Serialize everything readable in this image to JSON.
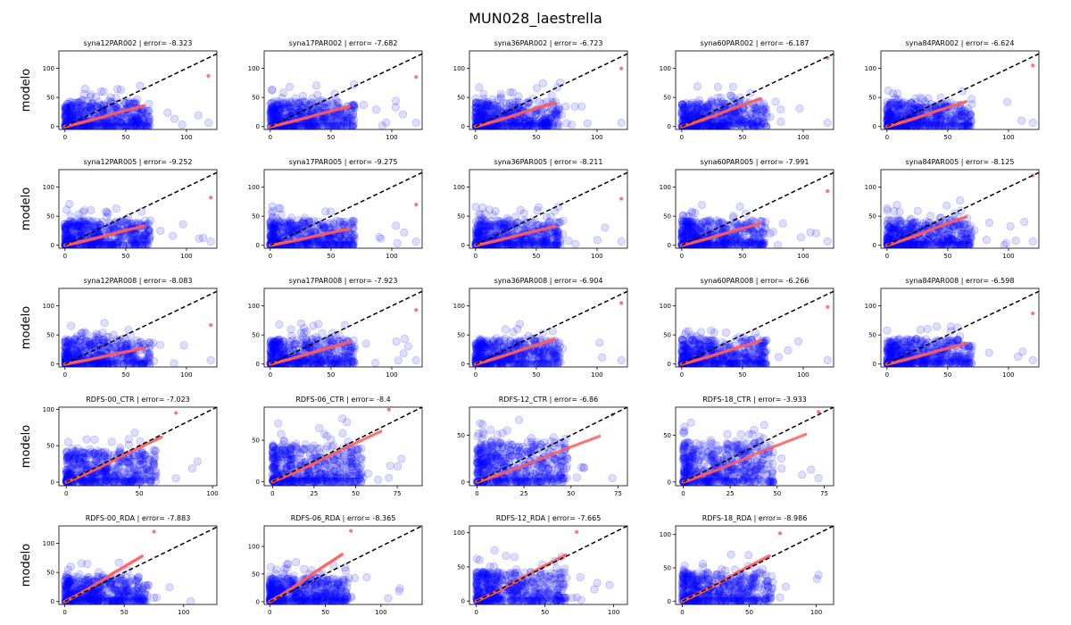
{
  "suptitle": "MUN028_laestrella",
  "ylabel": "modelo",
  "style": {
    "observed_color": "#0000ff",
    "fit_color": "#ff5a5a",
    "reference_line_color": "#000000",
    "reference_line_style": "dashed",
    "grid": false
  },
  "chart_data": [
    {
      "type": "scatter",
      "title": "syna12PAR002 | error= -8.323",
      "xlim": [
        -5,
        125
      ],
      "ylim": [
        -5,
        130
      ],
      "xticks": [
        0,
        50,
        100
      ],
      "yticks": [
        0,
        50,
        100
      ],
      "fit_end": [
        118,
        87
      ]
    },
    {
      "type": "scatter",
      "title": "syna17PAR002 | error= -7.682",
      "xlim": [
        -5,
        125
      ],
      "ylim": [
        -5,
        130
      ],
      "xticks": [
        0,
        50,
        100
      ],
      "yticks": [
        0,
        50,
        100
      ],
      "fit_end": [
        120,
        85
      ]
    },
    {
      "type": "scatter",
      "title": "syna36PAR002 | error= -6.723",
      "xlim": [
        -5,
        125
      ],
      "ylim": [
        -5,
        130
      ],
      "xticks": [
        0,
        50,
        100
      ],
      "yticks": [
        0,
        50,
        100
      ],
      "fit_end": [
        120,
        100
      ]
    },
    {
      "type": "scatter",
      "title": "syna60PAR002 | error= -6.187",
      "xlim": [
        -5,
        125
      ],
      "ylim": [
        -5,
        130
      ],
      "xticks": [
        0,
        50,
        100
      ],
      "yticks": [
        0,
        50,
        100
      ],
      "fit_end": [
        120,
        118
      ]
    },
    {
      "type": "scatter",
      "title": "syna84PAR002 | error= -6.624",
      "xlim": [
        -5,
        125
      ],
      "ylim": [
        -5,
        130
      ],
      "xticks": [
        0,
        50,
        100
      ],
      "yticks": [
        0,
        50,
        100
      ],
      "fit_end": [
        120,
        105
      ]
    },
    {
      "type": "scatter",
      "title": "syna12PAR005 | error= -9.252",
      "xlim": [
        -5,
        125
      ],
      "ylim": [
        -5,
        130
      ],
      "xticks": [
        0,
        50,
        100
      ],
      "yticks": [
        0,
        50,
        100
      ],
      "fit_end": [
        120,
        82
      ]
    },
    {
      "type": "scatter",
      "title": "syna17PAR005 | error= -9.275",
      "xlim": [
        -5,
        125
      ],
      "ylim": [
        -5,
        130
      ],
      "xticks": [
        0,
        50,
        100
      ],
      "yticks": [
        0,
        50,
        100
      ],
      "fit_end": [
        120,
        70
      ]
    },
    {
      "type": "scatter",
      "title": "syna36PAR005 | error= -8.211",
      "xlim": [
        -5,
        125
      ],
      "ylim": [
        -5,
        130
      ],
      "xticks": [
        0,
        50,
        100
      ],
      "yticks": [
        0,
        50,
        100
      ],
      "fit_end": [
        120,
        80
      ]
    },
    {
      "type": "scatter",
      "title": "syna60PAR005 | error= -7.991",
      "xlim": [
        -5,
        125
      ],
      "ylim": [
        -5,
        130
      ],
      "xticks": [
        0,
        50,
        100
      ],
      "yticks": [
        0,
        50,
        100
      ],
      "fit_end": [
        120,
        93
      ]
    },
    {
      "type": "scatter",
      "title": "syna84PAR005 | error= -8.125",
      "xlim": [
        -5,
        125
      ],
      "ylim": [
        -5,
        130
      ],
      "xticks": [
        0,
        50,
        100
      ],
      "yticks": [
        0,
        50,
        100
      ],
      "fit_end": [
        120,
        120
      ]
    },
    {
      "type": "scatter",
      "title": "syna12PAR008 | error= -8.083",
      "xlim": [
        -5,
        125
      ],
      "ylim": [
        -5,
        130
      ],
      "xticks": [
        0,
        50,
        100
      ],
      "yticks": [
        0,
        50,
        100
      ],
      "fit_end": [
        120,
        67
      ]
    },
    {
      "type": "scatter",
      "title": "syna17PAR008 | error= -7.923",
      "xlim": [
        -5,
        125
      ],
      "ylim": [
        -5,
        130
      ],
      "xticks": [
        0,
        50,
        100
      ],
      "yticks": [
        0,
        50,
        100
      ],
      "fit_end": [
        120,
        93
      ]
    },
    {
      "type": "scatter",
      "title": "syna36PAR008 | error= -6.904",
      "xlim": [
        -5,
        125
      ],
      "ylim": [
        -5,
        130
      ],
      "xticks": [
        0,
        50,
        100
      ],
      "yticks": [
        0,
        50,
        100
      ],
      "fit_end": [
        120,
        105
      ]
    },
    {
      "type": "scatter",
      "title": "syna60PAR008 | error= -6.266",
      "xlim": [
        -5,
        125
      ],
      "ylim": [
        -5,
        130
      ],
      "xticks": [
        0,
        50,
        100
      ],
      "yticks": [
        0,
        50,
        100
      ],
      "fit_end": [
        120,
        98
      ]
    },
    {
      "type": "scatter",
      "title": "syna84PAR008 | error= -6.598",
      "xlim": [
        -5,
        125
      ],
      "ylim": [
        -5,
        130
      ],
      "xticks": [
        0,
        50,
        100
      ],
      "yticks": [
        0,
        50,
        100
      ],
      "fit_end": [
        120,
        87
      ]
    },
    {
      "type": "scatter",
      "title": "RDFS-00_CTR | error= -7.023",
      "xlim": [
        -5,
        103
      ],
      "ylim": [
        -5,
        103
      ],
      "xticks": [
        0,
        50,
        100
      ],
      "yticks": [
        0,
        50,
        100
      ],
      "fit_end": [
        75,
        95
      ]
    },
    {
      "type": "scatter",
      "title": "RDFS-06_CTR | error= -8.4",
      "xlim": [
        -5,
        90
      ],
      "ylim": [
        -5,
        90
      ],
      "xticks": [
        0,
        25,
        50,
        75
      ],
      "yticks": [
        0,
        50
      ],
      "fit_end": [
        70,
        87
      ]
    },
    {
      "type": "scatter",
      "title": "RDFS-12_CTR | error= -6.86",
      "xlim": [
        -4,
        80
      ],
      "ylim": [
        -4,
        80
      ],
      "xticks": [
        0,
        25,
        50,
        75
      ],
      "yticks": [
        0,
        50
      ],
      "fit_end": [
        72,
        72
      ]
    },
    {
      "type": "scatter",
      "title": "RDFS-18_CTR | error= -3.933",
      "xlim": [
        -4,
        80
      ],
      "ylim": [
        -4,
        80
      ],
      "xticks": [
        0,
        25,
        50,
        75
      ],
      "yticks": [
        0,
        50
      ],
      "fit_end": [
        72,
        75
      ]
    },
    null,
    {
      "type": "scatter",
      "title": "RDFS-00_RDA | error= -7.883",
      "xlim": [
        -5,
        128
      ],
      "ylim": [
        -5,
        130
      ],
      "xticks": [
        0,
        50,
        100
      ],
      "yticks": [
        0,
        50,
        100
      ],
      "fit_end": [
        75,
        120
      ]
    },
    {
      "type": "scatter",
      "title": "RDFS-06_RDA | error= -8.365",
      "xlim": [
        -5,
        137
      ],
      "ylim": [
        -5,
        137
      ],
      "xticks": [
        0,
        50,
        100
      ],
      "yticks": [
        0,
        50,
        100
      ],
      "fit_end": [
        73,
        128
      ]
    },
    {
      "type": "scatter",
      "title": "RDFS-12_RDA | error= -7.665",
      "xlim": [
        -5,
        110
      ],
      "ylim": [
        -5,
        110
      ],
      "xticks": [
        0,
        50,
        100
      ],
      "yticks": [
        0,
        50,
        100
      ],
      "fit_end": [
        73,
        101
      ]
    },
    {
      "type": "scatter",
      "title": "RDFS-18_RDA | error= -8.986",
      "xlim": [
        -5,
        113
      ],
      "ylim": [
        -5,
        113
      ],
      "xticks": [
        0,
        50,
        100
      ],
      "yticks": [
        0,
        50,
        100
      ],
      "fit_end": [
        73,
        102
      ]
    },
    null
  ]
}
